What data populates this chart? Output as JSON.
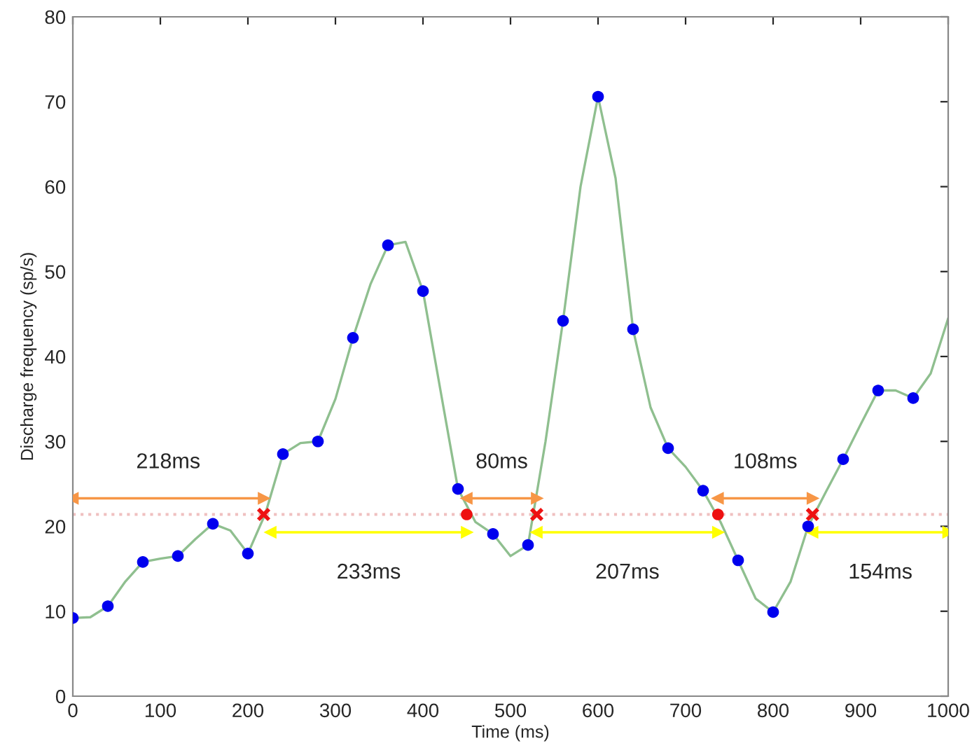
{
  "chart_data": {
    "type": "line",
    "xlabel": "Time (ms)",
    "ylabel": "Discharge frequency (sp/s)",
    "xlim": [
      0,
      1000
    ],
    "xticks": [
      0,
      100,
      200,
      300,
      400,
      500,
      600,
      700,
      800,
      900,
      1000
    ],
    "ylim": [
      0,
      80
    ],
    "yticks": [
      0,
      10,
      20,
      30,
      40,
      50,
      60,
      70,
      80
    ],
    "grid": false,
    "legend": false,
    "series": [
      {
        "color": "#8fbf8f",
        "marker": "none",
        "line_style": "solid",
        "x": [
          0,
          20,
          40,
          60,
          80,
          100,
          120,
          140,
          160,
          180,
          200,
          220,
          240,
          260,
          280,
          300,
          320,
          340,
          360,
          380,
          400,
          420,
          440,
          460,
          480,
          500,
          520,
          540,
          560,
          580,
          600,
          620,
          640,
          660,
          680,
          700,
          720,
          740,
          760,
          780,
          800,
          820,
          840,
          860,
          880,
          900,
          920,
          940,
          960,
          980,
          1000
        ],
        "values": [
          9.2,
          9.3,
          10.6,
          13.5,
          15.8,
          16.2,
          16.5,
          18.5,
          20.3,
          19.5,
          16.8,
          21.5,
          28.5,
          29.8,
          30,
          35,
          42.2,
          48.5,
          53.1,
          53.5,
          47.7,
          36,
          24.4,
          20.5,
          19.1,
          16.5,
          17.8,
          30,
          44.2,
          60,
          70.6,
          61,
          43.2,
          34,
          29.2,
          27,
          24.2,
          20.5,
          16,
          11.5,
          9.9,
          13.5,
          20,
          24,
          27.9,
          32,
          36,
          36,
          35.1,
          38,
          44.5
        ]
      },
      {
        "type": "scatter",
        "color": "#0000ee",
        "marker": "circle",
        "x": [
          0,
          40,
          80,
          120,
          160,
          200,
          240,
          280,
          320,
          360,
          400,
          440,
          480,
          520,
          560,
          600,
          640,
          680,
          720,
          760,
          800,
          840,
          880,
          920,
          960
        ],
        "values": [
          9.2,
          10.6,
          15.8,
          16.5,
          20.3,
          16.8,
          28.5,
          30,
          42.2,
          53.1,
          47.7,
          24.4,
          19.1,
          17.8,
          44.2,
          70.6,
          43.2,
          29.2,
          24.2,
          16,
          9.9,
          20,
          27.9,
          36,
          35.1
        ]
      },
      {
        "type": "scatter",
        "color": "#ee1111",
        "marker": "cross",
        "x": [
          218,
          530,
          845
        ],
        "values": [
          21.4,
          21.4,
          21.4
        ]
      },
      {
        "type": "scatter",
        "color": "#ee1111",
        "marker": "circle",
        "x": [
          450,
          737
        ],
        "values": [
          21.4,
          21.4
        ]
      },
      {
        "type": "line",
        "name": "218ms",
        "color": "#f79646",
        "marker": "triangle",
        "x": [
          0,
          218
        ],
        "values": [
          23.3,
          23.3
        ]
      },
      {
        "type": "line",
        "name": "233ms",
        "color": "#ffff00",
        "marker": "triangle",
        "x": [
          226,
          450
        ],
        "values": [
          19.3,
          19.3
        ]
      },
      {
        "type": "line",
        "name": "80ms",
        "color": "#f79646",
        "marker": "triangle",
        "x": [
          450,
          530
        ],
        "values": [
          23.3,
          23.3
        ]
      },
      {
        "type": "line",
        "name": "207ms",
        "color": "#ffff00",
        "marker": "triangle",
        "x": [
          530,
          737
        ],
        "values": [
          19.3,
          19.3
        ]
      },
      {
        "type": "line",
        "name": "108ms",
        "color": "#f79646",
        "marker": "triangle",
        "x": [
          737,
          845
        ],
        "values": [
          23.3,
          23.3
        ]
      },
      {
        "type": "line",
        "name": "154ms",
        "color": "#ffff00",
        "marker": "triangle",
        "x": [
          845,
          1000
        ],
        "values": [
          19.3,
          19.3
        ]
      }
    ],
    "ref_lines": [
      {
        "axis": "y",
        "value": 21.4,
        "color": "#f0c0c0",
        "line_style": "dotted"
      }
    ]
  }
}
